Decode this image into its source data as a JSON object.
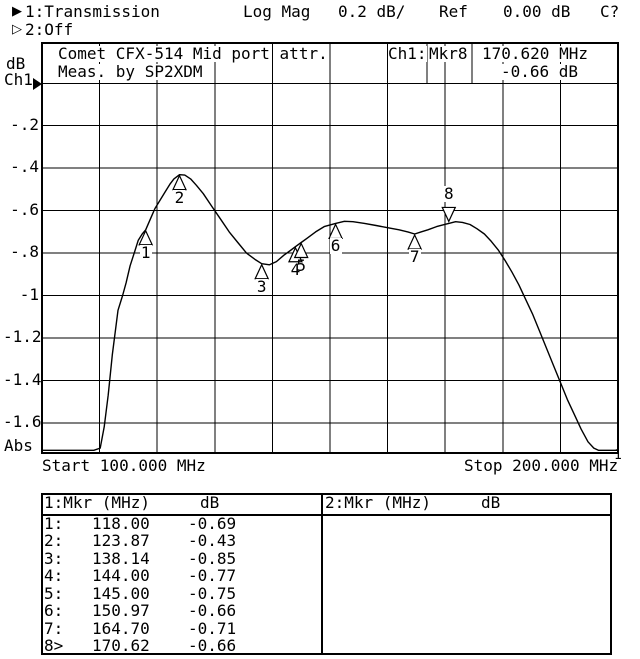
{
  "header": {
    "line1": {
      "active_icon": "▶",
      "channel": "1:Transmission",
      "format": "Log Mag",
      "scale": "0.2 dB/",
      "ref_label": "Ref",
      "ref_value": "0.00 dB",
      "status": "C?"
    },
    "line2": {
      "inactive_icon": "▷",
      "channel": "2:Off"
    }
  },
  "plot": {
    "title_line1": "Comet CFX-514 Mid port attr.",
    "title_line2": "Meas. by SP2XDM",
    "readout": {
      "channel": "Ch1:",
      "marker": "Mkr8",
      "frequency": "170.620 MHz",
      "level": "-0.66 dB"
    },
    "y_axis": {
      "unit": "dB",
      "channel": "Ch1",
      "ref_marker_icon": "▶",
      "labels": [
        "-.2",
        "-.4",
        "-.6",
        "-.8",
        "-1",
        "-1.2",
        "-1.4",
        "-1.6"
      ],
      "bottom_label": "Abs"
    },
    "x_axis": {
      "start": "Start 100.000 MHz",
      "stop": "Stop 200.000 MHz"
    },
    "trace_label": "1"
  },
  "chart_data": {
    "type": "line",
    "title": "Comet CFX-514 Mid port attr.",
    "subtitle": "Meas. by SP2XDM",
    "x_unit": "MHz",
    "y_unit": "dB",
    "x_range": [
      100,
      200
    ],
    "ref_level_db": 0.0,
    "scale_db_per_div": 0.2,
    "y_top_db": 0.2,
    "y_bottom_db": -1.74,
    "grid": true,
    "trace": [
      [
        100,
        -1.73
      ],
      [
        109,
        -1.73
      ],
      [
        110.1,
        -1.72
      ],
      [
        110.8,
        -1.62
      ],
      [
        111.5,
        -1.47
      ],
      [
        112.2,
        -1.28
      ],
      [
        113.2,
        -1.07
      ],
      [
        114,
        -1.0
      ],
      [
        114.6,
        -0.94
      ],
      [
        115.3,
        -0.86
      ],
      [
        116,
        -0.8
      ],
      [
        116.7,
        -0.74
      ],
      [
        117.4,
        -0.71
      ],
      [
        118,
        -0.69
      ],
      [
        118.8,
        -0.64
      ],
      [
        119.6,
        -0.59
      ],
      [
        120.5,
        -0.55
      ],
      [
        121.4,
        -0.51
      ],
      [
        122.2,
        -0.475
      ],
      [
        122.9,
        -0.45
      ],
      [
        123.87,
        -0.43
      ],
      [
        124.8,
        -0.432
      ],
      [
        125.8,
        -0.45
      ],
      [
        126.8,
        -0.48
      ],
      [
        128,
        -0.52
      ],
      [
        129.5,
        -0.58
      ],
      [
        131,
        -0.64
      ],
      [
        132.5,
        -0.7
      ],
      [
        134,
        -0.75
      ],
      [
        135.5,
        -0.8
      ],
      [
        137,
        -0.83
      ],
      [
        138.14,
        -0.85
      ],
      [
        139.5,
        -0.855
      ],
      [
        140.7,
        -0.84
      ],
      [
        142,
        -0.81
      ],
      [
        143,
        -0.79
      ],
      [
        144,
        -0.77
      ],
      [
        145,
        -0.75
      ],
      [
        146,
        -0.73
      ],
      [
        147.5,
        -0.7
      ],
      [
        149,
        -0.675
      ],
      [
        150.97,
        -0.66
      ],
      [
        152.5,
        -0.65
      ],
      [
        154,
        -0.652
      ],
      [
        156,
        -0.66
      ],
      [
        158,
        -0.67
      ],
      [
        160,
        -0.68
      ],
      [
        162,
        -0.69
      ],
      [
        163.5,
        -0.7
      ],
      [
        164.7,
        -0.71
      ],
      [
        165.8,
        -0.7
      ],
      [
        167,
        -0.69
      ],
      [
        168.5,
        -0.675
      ],
      [
        170,
        -0.664
      ],
      [
        170.62,
        -0.66
      ],
      [
        171.8,
        -0.652
      ],
      [
        173,
        -0.655
      ],
      [
        174.3,
        -0.665
      ],
      [
        175.5,
        -0.685
      ],
      [
        176.8,
        -0.71
      ],
      [
        178,
        -0.745
      ],
      [
        179.2,
        -0.785
      ],
      [
        180.4,
        -0.835
      ],
      [
        181.6,
        -0.89
      ],
      [
        182.8,
        -0.95
      ],
      [
        184,
        -1.02
      ],
      [
        185.2,
        -1.09
      ],
      [
        186.4,
        -1.17
      ],
      [
        187.6,
        -1.25
      ],
      [
        188.8,
        -1.33
      ],
      [
        190,
        -1.41
      ],
      [
        191.2,
        -1.49
      ],
      [
        192.4,
        -1.56
      ],
      [
        193.6,
        -1.63
      ],
      [
        194.8,
        -1.69
      ],
      [
        195.8,
        -1.72
      ],
      [
        196.6,
        -1.73
      ],
      [
        200,
        -1.73
      ]
    ],
    "markers": [
      {
        "n": "1",
        "freq": 118.0,
        "db": -0.69
      },
      {
        "n": "2",
        "freq": 123.87,
        "db": -0.43
      },
      {
        "n": "3",
        "freq": 138.14,
        "db": -0.85
      },
      {
        "n": "4",
        "freq": 144.0,
        "db": -0.77,
        "no_bg": true
      },
      {
        "n": "5",
        "freq": 145.0,
        "db": -0.75,
        "no_bg": true
      },
      {
        "n": "6",
        "freq": 150.97,
        "db": -0.66
      },
      {
        "n": "7",
        "freq": 164.7,
        "db": -0.71
      },
      {
        "n": "8",
        "freq": 170.62,
        "db": -0.66,
        "active": true
      }
    ]
  },
  "marker_table": {
    "left": {
      "title": "1:Mkr (MHz)",
      "unit": "dB",
      "rows": [
        {
          "num": "1:",
          "freq": "118.00",
          "db": "-0.69"
        },
        {
          "num": "2:",
          "freq": "123.87",
          "db": "-0.43"
        },
        {
          "num": "3:",
          "freq": "138.14",
          "db": "-0.85"
        },
        {
          "num": "4:",
          "freq": "144.00",
          "db": "-0.77"
        },
        {
          "num": "5:",
          "freq": "145.00",
          "db": "-0.75"
        },
        {
          "num": "6:",
          "freq": "150.97",
          "db": "-0.66"
        },
        {
          "num": "7:",
          "freq": "164.70",
          "db": "-0.71"
        },
        {
          "num": "8>",
          "freq": "170.62",
          "db": "-0.66"
        }
      ]
    },
    "right": {
      "title": "2:Mkr (MHz)",
      "unit": "dB",
      "rows": []
    }
  },
  "colors": {
    "foreground": "#000000",
    "background": "#ffffff"
  }
}
